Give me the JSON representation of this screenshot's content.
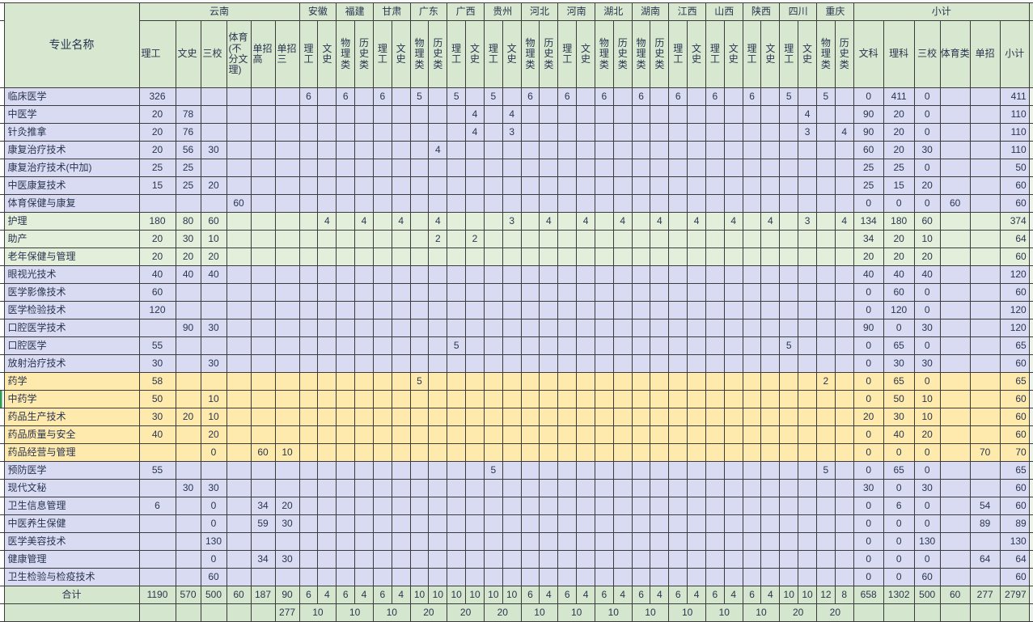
{
  "colors": {
    "hdr": "#d7e7d0",
    "lav": "#d9dbf2",
    "grn": "#e3efda",
    "yel": "#ffeaad",
    "tot": "#d5e6ce",
    "strip": "#edf2ea",
    "mark": "#2f9e4f",
    "ink": "#2a3550"
  },
  "table": {
    "corner": "专业名称",
    "groups": [
      {
        "id": "yn",
        "name": "云南",
        "cols": [
          {
            "id": "yn1",
            "label": "理工"
          },
          {
            "id": "yn2",
            "label": "文史"
          },
          {
            "id": "yn3",
            "label": "三校"
          },
          {
            "id": "yn4",
            "label": "体育(不分文理)"
          },
          {
            "id": "yn5",
            "label": "单招高"
          },
          {
            "id": "yn6",
            "label": "单招三"
          }
        ]
      },
      {
        "id": "ah",
        "name": "安徽",
        "cols": [
          {
            "id": "ah1",
            "label": "理工"
          },
          {
            "id": "ah2",
            "label": "文史"
          }
        ]
      },
      {
        "id": "fj",
        "name": "福建",
        "cols": [
          {
            "id": "fj1",
            "label": "物理类"
          },
          {
            "id": "fj2",
            "label": "历史类"
          }
        ]
      },
      {
        "id": "gs",
        "name": "甘肃",
        "cols": [
          {
            "id": "gs1",
            "label": "理工"
          },
          {
            "id": "gs2",
            "label": "文史"
          }
        ]
      },
      {
        "id": "gd",
        "name": "广东",
        "cols": [
          {
            "id": "gd1",
            "label": "物理类"
          },
          {
            "id": "gd2",
            "label": "历史类"
          }
        ]
      },
      {
        "id": "gx",
        "name": "广西",
        "cols": [
          {
            "id": "gx1",
            "label": "理工"
          },
          {
            "id": "gx2",
            "label": "文史"
          }
        ]
      },
      {
        "id": "gz",
        "name": "贵州",
        "cols": [
          {
            "id": "gz1",
            "label": "理工"
          },
          {
            "id": "gz2",
            "label": "文史"
          }
        ]
      },
      {
        "id": "heb",
        "name": "河北",
        "cols": [
          {
            "id": "heb1",
            "label": "物理类"
          },
          {
            "id": "heb2",
            "label": "历史类"
          }
        ]
      },
      {
        "id": "hen",
        "name": "河南",
        "cols": [
          {
            "id": "hen1",
            "label": "理工"
          },
          {
            "id": "hen2",
            "label": "文史"
          }
        ]
      },
      {
        "id": "hub",
        "name": "湖北",
        "cols": [
          {
            "id": "hub1",
            "label": "物理类"
          },
          {
            "id": "hub2",
            "label": "历史类"
          }
        ]
      },
      {
        "id": "hun",
        "name": "湖南",
        "cols": [
          {
            "id": "hun1",
            "label": "物理类"
          },
          {
            "id": "hun2",
            "label": "历史类"
          }
        ]
      },
      {
        "id": "jx",
        "name": "江西",
        "cols": [
          {
            "id": "jx1",
            "label": "理工"
          },
          {
            "id": "jx2",
            "label": "文史"
          }
        ]
      },
      {
        "id": "sx",
        "name": "山西",
        "cols": [
          {
            "id": "sx1",
            "label": "理工"
          },
          {
            "id": "sx2",
            "label": "文史"
          }
        ]
      },
      {
        "id": "shx",
        "name": "陕西",
        "cols": [
          {
            "id": "shx1",
            "label": "理工"
          },
          {
            "id": "shx2",
            "label": "文史"
          }
        ]
      },
      {
        "id": "sc",
        "name": "四川",
        "cols": [
          {
            "id": "sc1",
            "label": "理工"
          },
          {
            "id": "sc2",
            "label": "文史"
          }
        ]
      },
      {
        "id": "cq",
        "name": "重庆",
        "cols": [
          {
            "id": "cq1",
            "label": "物理类"
          },
          {
            "id": "cq2",
            "label": "历史类"
          }
        ]
      },
      {
        "id": "sub",
        "name": "小计",
        "cols": [
          {
            "id": "s1",
            "label": "文科"
          },
          {
            "id": "s2",
            "label": "理科"
          },
          {
            "id": "s3",
            "label": "三校"
          },
          {
            "id": "s4",
            "label": "体育类"
          },
          {
            "id": "s5",
            "label": "单招"
          },
          {
            "id": "s6",
            "label": "小计"
          }
        ]
      }
    ],
    "rows": [
      {
        "label": "临床医学",
        "bg": "lav",
        "cells": {
          "yn1": 326,
          "ah1": 6,
          "fj1": 6,
          "gs1": 6,
          "gd1": 5,
          "gx1": 5,
          "gz1": 5,
          "heb1": 6,
          "hen1": 6,
          "hub1": 6,
          "hun1": 6,
          "jx1": 6,
          "sx1": 6,
          "shx1": 6,
          "sc1": 5,
          "cq1": 5,
          "s1": 0,
          "s2": 411,
          "s3": 0,
          "s6": 411
        }
      },
      {
        "label": "中医学",
        "bg": "lav",
        "cells": {
          "yn1": 20,
          "yn2": 78,
          "gx2": 4,
          "gz2": 4,
          "sc2": 4,
          "s1": 90,
          "s2": 20,
          "s3": 0,
          "s6": 110
        }
      },
      {
        "label": "针灸推拿",
        "bg": "lav",
        "cells": {
          "yn1": 20,
          "yn2": 76,
          "gx2": 4,
          "gz2": 3,
          "sc2": 3,
          "cq2": 4,
          "s1": 90,
          "s2": 20,
          "s3": 0,
          "s6": 110
        }
      },
      {
        "label": "康复治疗技术",
        "bg": "lav",
        "cells": {
          "yn1": 20,
          "yn2": 56,
          "yn3": 30,
          "gd2": 4,
          "s1": 60,
          "s2": 20,
          "s3": 30,
          "s6": 110
        }
      },
      {
        "label": "康复治疗技术(中加)",
        "bg": "lav",
        "cells": {
          "yn1": 25,
          "yn2": 25,
          "s1": 25,
          "s2": 25,
          "s3": 0,
          "s6": 50
        }
      },
      {
        "label": "中医康复技术",
        "bg": "lav",
        "cells": {
          "yn1": 15,
          "yn2": 25,
          "yn3": 20,
          "s1": 25,
          "s2": 15,
          "s3": 20,
          "s6": 60
        }
      },
      {
        "label": "体育保健与康复",
        "bg": "lav",
        "cells": {
          "yn4": 60,
          "s1": 0,
          "s2": 0,
          "s3": 0,
          "s4": 60,
          "s6": 60
        }
      },
      {
        "label": "护理",
        "bg": "grn",
        "cells": {
          "yn1": 180,
          "yn2": 80,
          "yn3": 60,
          "ah2": 4,
          "fj2": 4,
          "gs2": 4,
          "gd2": 4,
          "gz2": 3,
          "heb2": 4,
          "hen2": 4,
          "hub2": 4,
          "hun2": 4,
          "jx2": 4,
          "sx2": 4,
          "shx2": 4,
          "sc2": 3,
          "cq2": 4,
          "s1": 134,
          "s2": 180,
          "s3": 60,
          "s6": 374
        }
      },
      {
        "label": "助产",
        "bg": "grn",
        "cells": {
          "yn1": 20,
          "yn2": 30,
          "yn3": 10,
          "gd2": 2,
          "gx2": 2,
          "s1": 34,
          "s2": 20,
          "s3": 10,
          "s6": 64
        }
      },
      {
        "label": "老年保健与管理",
        "bg": "grn",
        "cells": {
          "yn1": 20,
          "yn2": 20,
          "yn3": 20,
          "s1": 20,
          "s2": 20,
          "s3": 20,
          "s6": 60
        }
      },
      {
        "label": "眼视光技术",
        "bg": "lav",
        "cells": {
          "yn1": 40,
          "yn2": 40,
          "yn3": 40,
          "s1": 40,
          "s2": 40,
          "s3": 40,
          "s6": 120
        }
      },
      {
        "label": "医学影像技术",
        "bg": "lav",
        "cells": {
          "yn1": 60,
          "s1": 0,
          "s2": 60,
          "s3": 0,
          "s6": 60
        }
      },
      {
        "label": "医学检验技术",
        "bg": "lav",
        "cells": {
          "yn1": 120,
          "s1": 0,
          "s2": 120,
          "s3": 0,
          "s6": 120
        }
      },
      {
        "label": "口腔医学技术",
        "bg": "lav",
        "cells": {
          "yn2": 90,
          "yn3": 30,
          "s1": 90,
          "s2": 0,
          "s3": 30,
          "s6": 120
        }
      },
      {
        "label": "口腔医学",
        "bg": "lav",
        "cells": {
          "yn1": 55,
          "gx1": 5,
          "sc1": 5,
          "s1": 0,
          "s2": 65,
          "s3": 0,
          "s6": 65
        }
      },
      {
        "label": "放射治疗技术",
        "bg": "lav",
        "cells": {
          "yn1": 30,
          "yn3": 30,
          "s1": 0,
          "s2": 30,
          "s3": 30,
          "s6": 60
        }
      },
      {
        "label": "药学",
        "bg": "yel",
        "cells": {
          "yn1": 58,
          "gd1": 5,
          "cq1": 2,
          "s1": 0,
          "s2": 65,
          "s3": 0,
          "s6": 65
        }
      },
      {
        "label": "中药学",
        "bg": "yel",
        "mark": true,
        "cells": {
          "yn1": 50,
          "yn3": 10,
          "s1": 0,
          "s2": 50,
          "s3": 10,
          "s6": 60
        }
      },
      {
        "label": "药品生产技术",
        "bg": "yel",
        "cells": {
          "yn1": 30,
          "yn2": 20,
          "yn3": 10,
          "s1": 20,
          "s2": 30,
          "s3": 10,
          "s6": 60
        }
      },
      {
        "label": "药品质量与安全",
        "bg": "yel",
        "cells": {
          "yn1": 40,
          "yn3": 20,
          "s1": 0,
          "s2": 40,
          "s3": 20,
          "s6": 60
        }
      },
      {
        "label": "药品经营与管理",
        "bg": "yel",
        "cells": {
          "yn3": 0,
          "yn5": 60,
          "yn6": 10,
          "s1": 0,
          "s2": 0,
          "s3": 0,
          "s5": 70,
          "s6": 70
        }
      },
      {
        "label": "预防医学",
        "bg": "lav",
        "cells": {
          "yn1": 55,
          "gz1": 5,
          "cq1": 5,
          "s1": 0,
          "s2": 65,
          "s3": 0,
          "s6": 65
        }
      },
      {
        "label": "现代文秘",
        "bg": "lav",
        "cells": {
          "yn2": 30,
          "yn3": 30,
          "s1": 30,
          "s2": 0,
          "s3": 30,
          "s6": 60
        }
      },
      {
        "label": "卫生信息管理",
        "bg": "lav",
        "cells": {
          "yn1": 6,
          "yn3": 0,
          "yn5": 34,
          "yn6": 20,
          "s1": 0,
          "s2": 6,
          "s3": 0,
          "s5": 54,
          "s6": 60
        }
      },
      {
        "label": "中医养生保健",
        "bg": "lav",
        "cells": {
          "yn3": 0,
          "yn5": 59,
          "yn6": 30,
          "s1": 0,
          "s2": 0,
          "s3": 0,
          "s5": 89,
          "s6": 89
        }
      },
      {
        "label": "医学美容技术",
        "bg": "lav",
        "cells": {
          "yn3": 130,
          "s1": 0,
          "s2": 0,
          "s3": 130,
          "s6": 130
        }
      },
      {
        "label": "健康管理",
        "bg": "lav",
        "cells": {
          "yn3": 0,
          "yn5": 34,
          "yn6": 30,
          "s1": 0,
          "s2": 0,
          "s3": 0,
          "s5": 64,
          "s6": 64
        }
      },
      {
        "label": "卫生检验与检疫技术",
        "bg": "lav",
        "cells": {
          "yn3": 60,
          "s1": 0,
          "s2": 0,
          "s3": 60,
          "s6": 60
        }
      }
    ],
    "total_row": {
      "label": "合计",
      "cells": {
        "yn1": 1190,
        "yn2": 570,
        "yn3": 500,
        "yn4": 60,
        "yn5": 187,
        "yn6": 90,
        "ah1": 6,
        "ah2": 4,
        "fj1": 6,
        "fj2": 4,
        "gs1": 6,
        "gs2": 4,
        "gd1": 10,
        "gd2": 10,
        "gx1": 10,
        "gx2": 10,
        "gz1": 10,
        "gz2": 10,
        "heb1": 6,
        "heb2": 4,
        "hen1": 6,
        "hen2": 4,
        "hub1": 6,
        "hub2": 4,
        "hun1": 6,
        "hun2": 4,
        "jx1": 6,
        "jx2": 4,
        "sx1": 6,
        "sx2": 4,
        "shx1": 6,
        "shx2": 4,
        "sc1": 10,
        "sc2": 10,
        "cq1": 12,
        "cq2": 8,
        "s1": 658,
        "s2": 1302,
        "s3": 500,
        "s4": 60,
        "s5": 277,
        "s6": 2797
      }
    },
    "bottom_row": {
      "yn_cells": {
        "yn6": 277
      },
      "merged": {
        "ah": 10,
        "fj": 10,
        "gs": 10,
        "gd": 20,
        "gx": 20,
        "gz": 20,
        "heb": 10,
        "hen": 10,
        "hub": 10,
        "hun": 10,
        "jx": 10,
        "sx": 10,
        "shx": 10,
        "sc": 20,
        "cq": 20
      }
    }
  }
}
